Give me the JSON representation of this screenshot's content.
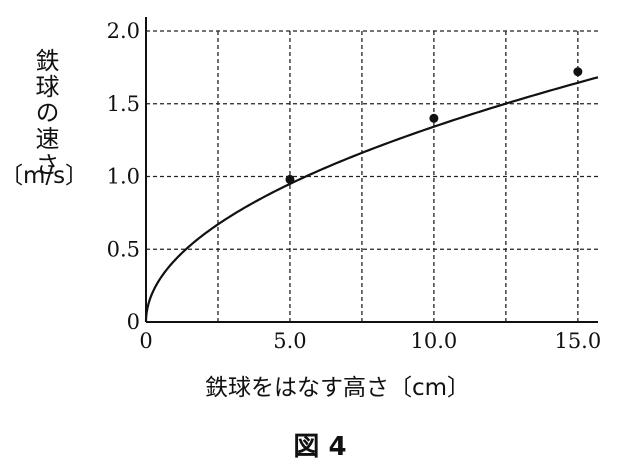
{
  "chart_data": {
    "type": "scatter",
    "title": "",
    "xlabel": "鉄球をはなす高さ",
    "xunit": "〔cm〕",
    "ylabel": "鉄球の速さ",
    "yunit": "〔m/s〕",
    "xlim": [
      0,
      15.7
    ],
    "ylim": [
      0,
      2.0
    ],
    "xticks": [
      0,
      5.0,
      10.0,
      15.0
    ],
    "xtick_labels": [
      "0",
      "5.0",
      "10.0",
      "15.0"
    ],
    "yticks": [
      0,
      0.5,
      1.0,
      1.5,
      2.0
    ],
    "ytick_labels": [
      "0",
      "0.5",
      "1.0",
      "1.5",
      "2.0"
    ],
    "x_gridlines": [
      2.5,
      5.0,
      7.5,
      10.0,
      12.5,
      15.0
    ],
    "y_gridlines": [
      0.5,
      1.0,
      1.5,
      2.0
    ],
    "grid": true,
    "grid_style": "dashed",
    "points": [
      {
        "x": 5.0,
        "y": 0.98
      },
      {
        "x": 10.0,
        "y": 1.4
      },
      {
        "x": 15.0,
        "y": 1.72
      }
    ],
    "curve": {
      "shape": "sqrt",
      "coefficient": 0.4245,
      "x_range": [
        0,
        15.7
      ]
    }
  },
  "caption": "図 4"
}
